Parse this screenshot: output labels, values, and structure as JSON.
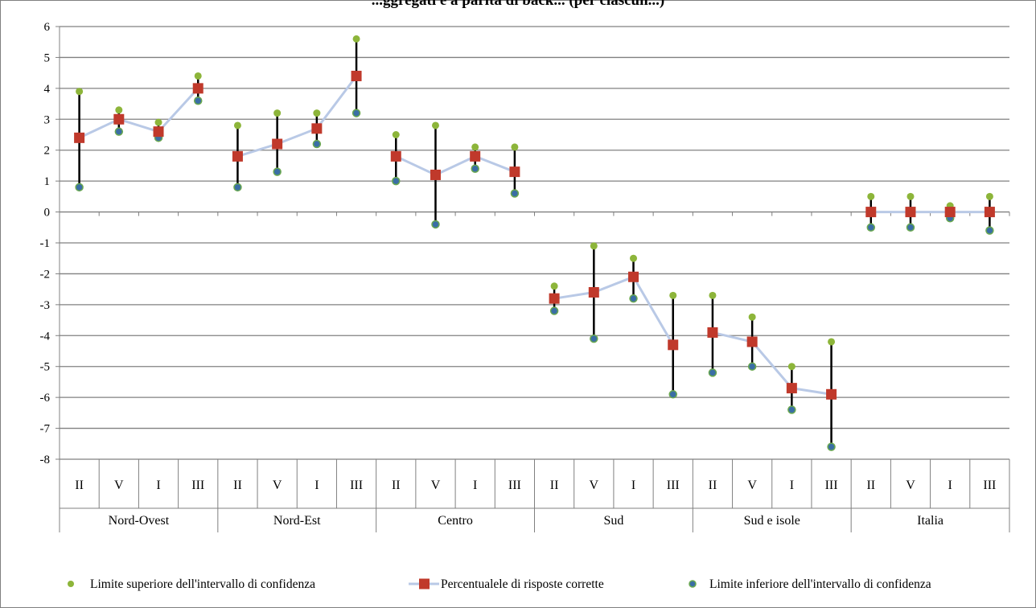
{
  "chart_data": {
    "type": "line",
    "title": "...ggregati e a parità di back... (per ciascun...)",
    "ylim": [
      -8,
      6
    ],
    "yticks": [
      6,
      5,
      4,
      3,
      2,
      1,
      0,
      -1,
      -2,
      -3,
      -4,
      -5,
      -6,
      -7,
      -8
    ],
    "grid": true,
    "legend_position": "bottom",
    "groups": [
      "Nord-Ovest",
      "Nord-Est",
      "Centro",
      "Sud",
      "Sud e isole",
      "Italia"
    ],
    "sub_categories": [
      "II",
      "V",
      "I",
      "III"
    ],
    "series": [
      {
        "name": "Limite superiore dell'intervallo di confidenza",
        "values": [
          3.9,
          3.3,
          2.9,
          4.4,
          2.8,
          3.2,
          3.2,
          5.6,
          2.5,
          2.8,
          2.1,
          2.1,
          -2.4,
          -1.1,
          -1.5,
          -2.7,
          -2.7,
          -3.4,
          -5.0,
          -4.2,
          0.5,
          0.5,
          0.2,
          0.5
        ]
      },
      {
        "name": "Percentualele di risposte corrette",
        "values": [
          2.4,
          3.0,
          2.6,
          4.0,
          1.8,
          2.2,
          2.7,
          4.4,
          1.8,
          1.2,
          1.8,
          1.3,
          -2.8,
          -2.6,
          -2.1,
          -4.3,
          -3.9,
          -4.2,
          -5.7,
          -5.9,
          0.0,
          0.0,
          0.0,
          0.0
        ]
      },
      {
        "name": "Limite inferiore dell'intervallo di confidenza",
        "values": [
          0.8,
          2.6,
          2.4,
          3.6,
          0.8,
          1.3,
          2.2,
          3.2,
          1.0,
          -0.4,
          1.4,
          0.6,
          -3.2,
          -4.1,
          -2.8,
          -5.9,
          -5.2,
          -5.0,
          -6.4,
          -7.6,
          -0.5,
          -0.5,
          -0.2,
          -0.6
        ]
      }
    ],
    "colors": {
      "upper": "#8db53a",
      "center": "#b9c9e6",
      "center_marker": "#c0392b",
      "lower": "#3a6ea5",
      "lower_rim": "#6aa84f",
      "errorbar": "#000000",
      "grid": "#808080"
    }
  }
}
